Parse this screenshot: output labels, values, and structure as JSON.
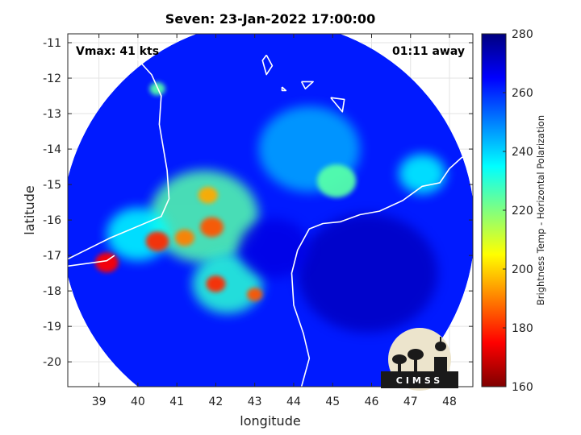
{
  "chart_data": {
    "type": "heatmap",
    "title": "Seven: 23-Jan-2022 17:00:00",
    "xlabel": "longitude",
    "ylabel": "latitude",
    "xlim": [
      38.2,
      48.6
    ],
    "ylim": [
      -20.7,
      -10.75
    ],
    "xticks": [
      39,
      40,
      41,
      42,
      43,
      44,
      45,
      46,
      47,
      48
    ],
    "xtick_labels": [
      "39",
      "40",
      "41",
      "42",
      "43",
      "44",
      "45",
      "46",
      "47",
      "48"
    ],
    "yticks": [
      -11,
      -12,
      -13,
      -14,
      -15,
      -16,
      -17,
      -18,
      -19,
      -20
    ],
    "ytick_labels": [
      "-11",
      "-12",
      "-13",
      "-14",
      "-15",
      "-16",
      "-17",
      "-18",
      "-19",
      "-20"
    ],
    "grid": true,
    "annotations": {
      "vmax": "Vmax: 41 kts",
      "time_away": "01:11 away"
    },
    "colorbar": {
      "label": "Brightness Temp - Horizontal Polarization",
      "range": [
        160,
        280
      ],
      "ticks": [
        160,
        180,
        200,
        220,
        240,
        260,
        280
      ],
      "tick_labels": [
        "160",
        "180",
        "200",
        "220",
        "240",
        "260",
        "280"
      ],
      "colors": [
        "#7f0000",
        "#ff0000",
        "#ff8000",
        "#ffff00",
        "#80ff80",
        "#00ffff",
        "#0080ff",
        "#0000ff",
        "#00007f"
      ]
    },
    "swath": {
      "center_lon": 43.35,
      "center_lat": -16.2,
      "radius_deg": 5.3
    },
    "background_level_k": 262,
    "features": [
      {
        "lon": 41.7,
        "lat": -15.9,
        "level_k": 225,
        "spread": 1.4
      },
      {
        "lon": 44.4,
        "lat": -14.0,
        "level_k": 245,
        "spread": 1.3
      },
      {
        "lon": 42.3,
        "lat": -17.8,
        "level_k": 230,
        "spread": 0.9
      },
      {
        "lon": 40.0,
        "lat": -16.4,
        "level_k": 235,
        "spread": 0.8
      },
      {
        "lon": 45.1,
        "lat": -14.9,
        "level_k": 225,
        "spread": 0.5
      },
      {
        "lon": 47.3,
        "lat": -14.7,
        "level_k": 235,
        "spread": 0.6
      },
      {
        "lon": 39.2,
        "lat": -17.2,
        "level_k": 175,
        "spread": 0.3
      },
      {
        "lon": 40.5,
        "lat": -16.6,
        "level_k": 180,
        "spread": 0.3
      },
      {
        "lon": 41.9,
        "lat": -16.2,
        "level_k": 185,
        "spread": 0.3
      },
      {
        "lon": 42.0,
        "lat": -17.8,
        "level_k": 180,
        "spread": 0.25
      },
      {
        "lon": 41.8,
        "lat": -15.3,
        "level_k": 195,
        "spread": 0.25
      },
      {
        "lon": 41.2,
        "lat": -16.5,
        "level_k": 190,
        "spread": 0.25
      },
      {
        "lon": 43.0,
        "lat": -18.1,
        "level_k": 185,
        "spread": 0.2
      },
      {
        "lon": 40.5,
        "lat": -12.3,
        "level_k": 225,
        "spread": 0.2
      },
      {
        "lon": 43.5,
        "lat": -16.8,
        "level_k": 268,
        "spread": 0.9
      },
      {
        "lon": 45.9,
        "lat": -17.5,
        "level_k": 272,
        "spread": 1.8
      }
    ],
    "coastlines": [
      [
        [
          39.4,
          -10.75
        ],
        [
          40.35,
          -11.9
        ],
        [
          40.6,
          -12.5
        ],
        [
          40.55,
          -13.3
        ],
        [
          40.75,
          -14.6
        ],
        [
          40.8,
          -15.4
        ],
        [
          40.6,
          -15.9
        ],
        [
          39.3,
          -16.5
        ],
        [
          38.2,
          -17.1
        ]
      ],
      [
        [
          38.2,
          -17.3
        ],
        [
          39.2,
          -17.15
        ],
        [
          39.4,
          -17.0
        ]
      ],
      [
        [
          48.6,
          -14.05
        ],
        [
          48.3,
          -14.25
        ],
        [
          48.0,
          -14.55
        ],
        [
          47.75,
          -14.95
        ],
        [
          47.3,
          -15.05
        ],
        [
          46.8,
          -15.45
        ],
        [
          46.2,
          -15.75
        ],
        [
          45.7,
          -15.85
        ],
        [
          45.2,
          -16.05
        ],
        [
          44.75,
          -16.1
        ],
        [
          44.4,
          -16.25
        ],
        [
          44.1,
          -16.85
        ],
        [
          43.95,
          -17.5
        ],
        [
          44.0,
          -18.4
        ],
        [
          44.25,
          -19.2
        ],
        [
          44.4,
          -19.9
        ],
        [
          44.2,
          -20.7
        ]
      ],
      [
        [
          43.3,
          -11.35
        ],
        [
          43.45,
          -11.65
        ],
        [
          43.3,
          -11.9
        ],
        [
          43.2,
          -11.5
        ],
        [
          43.3,
          -11.35
        ]
      ],
      [
        [
          44.2,
          -12.1
        ],
        [
          44.5,
          -12.1
        ],
        [
          44.3,
          -12.3
        ],
        [
          44.2,
          -12.1
        ]
      ],
      [
        [
          44.95,
          -12.55
        ],
        [
          45.3,
          -12.6
        ],
        [
          45.25,
          -12.95
        ],
        [
          44.95,
          -12.55
        ]
      ],
      [
        [
          48.2,
          -13.2
        ],
        [
          48.35,
          -13.35
        ],
        [
          48.2,
          -13.45
        ],
        [
          48.2,
          -13.2
        ]
      ],
      [
        [
          43.7,
          -12.25
        ],
        [
          43.8,
          -12.35
        ],
        [
          43.7,
          -12.35
        ],
        [
          43.7,
          -12.25
        ]
      ]
    ]
  }
}
